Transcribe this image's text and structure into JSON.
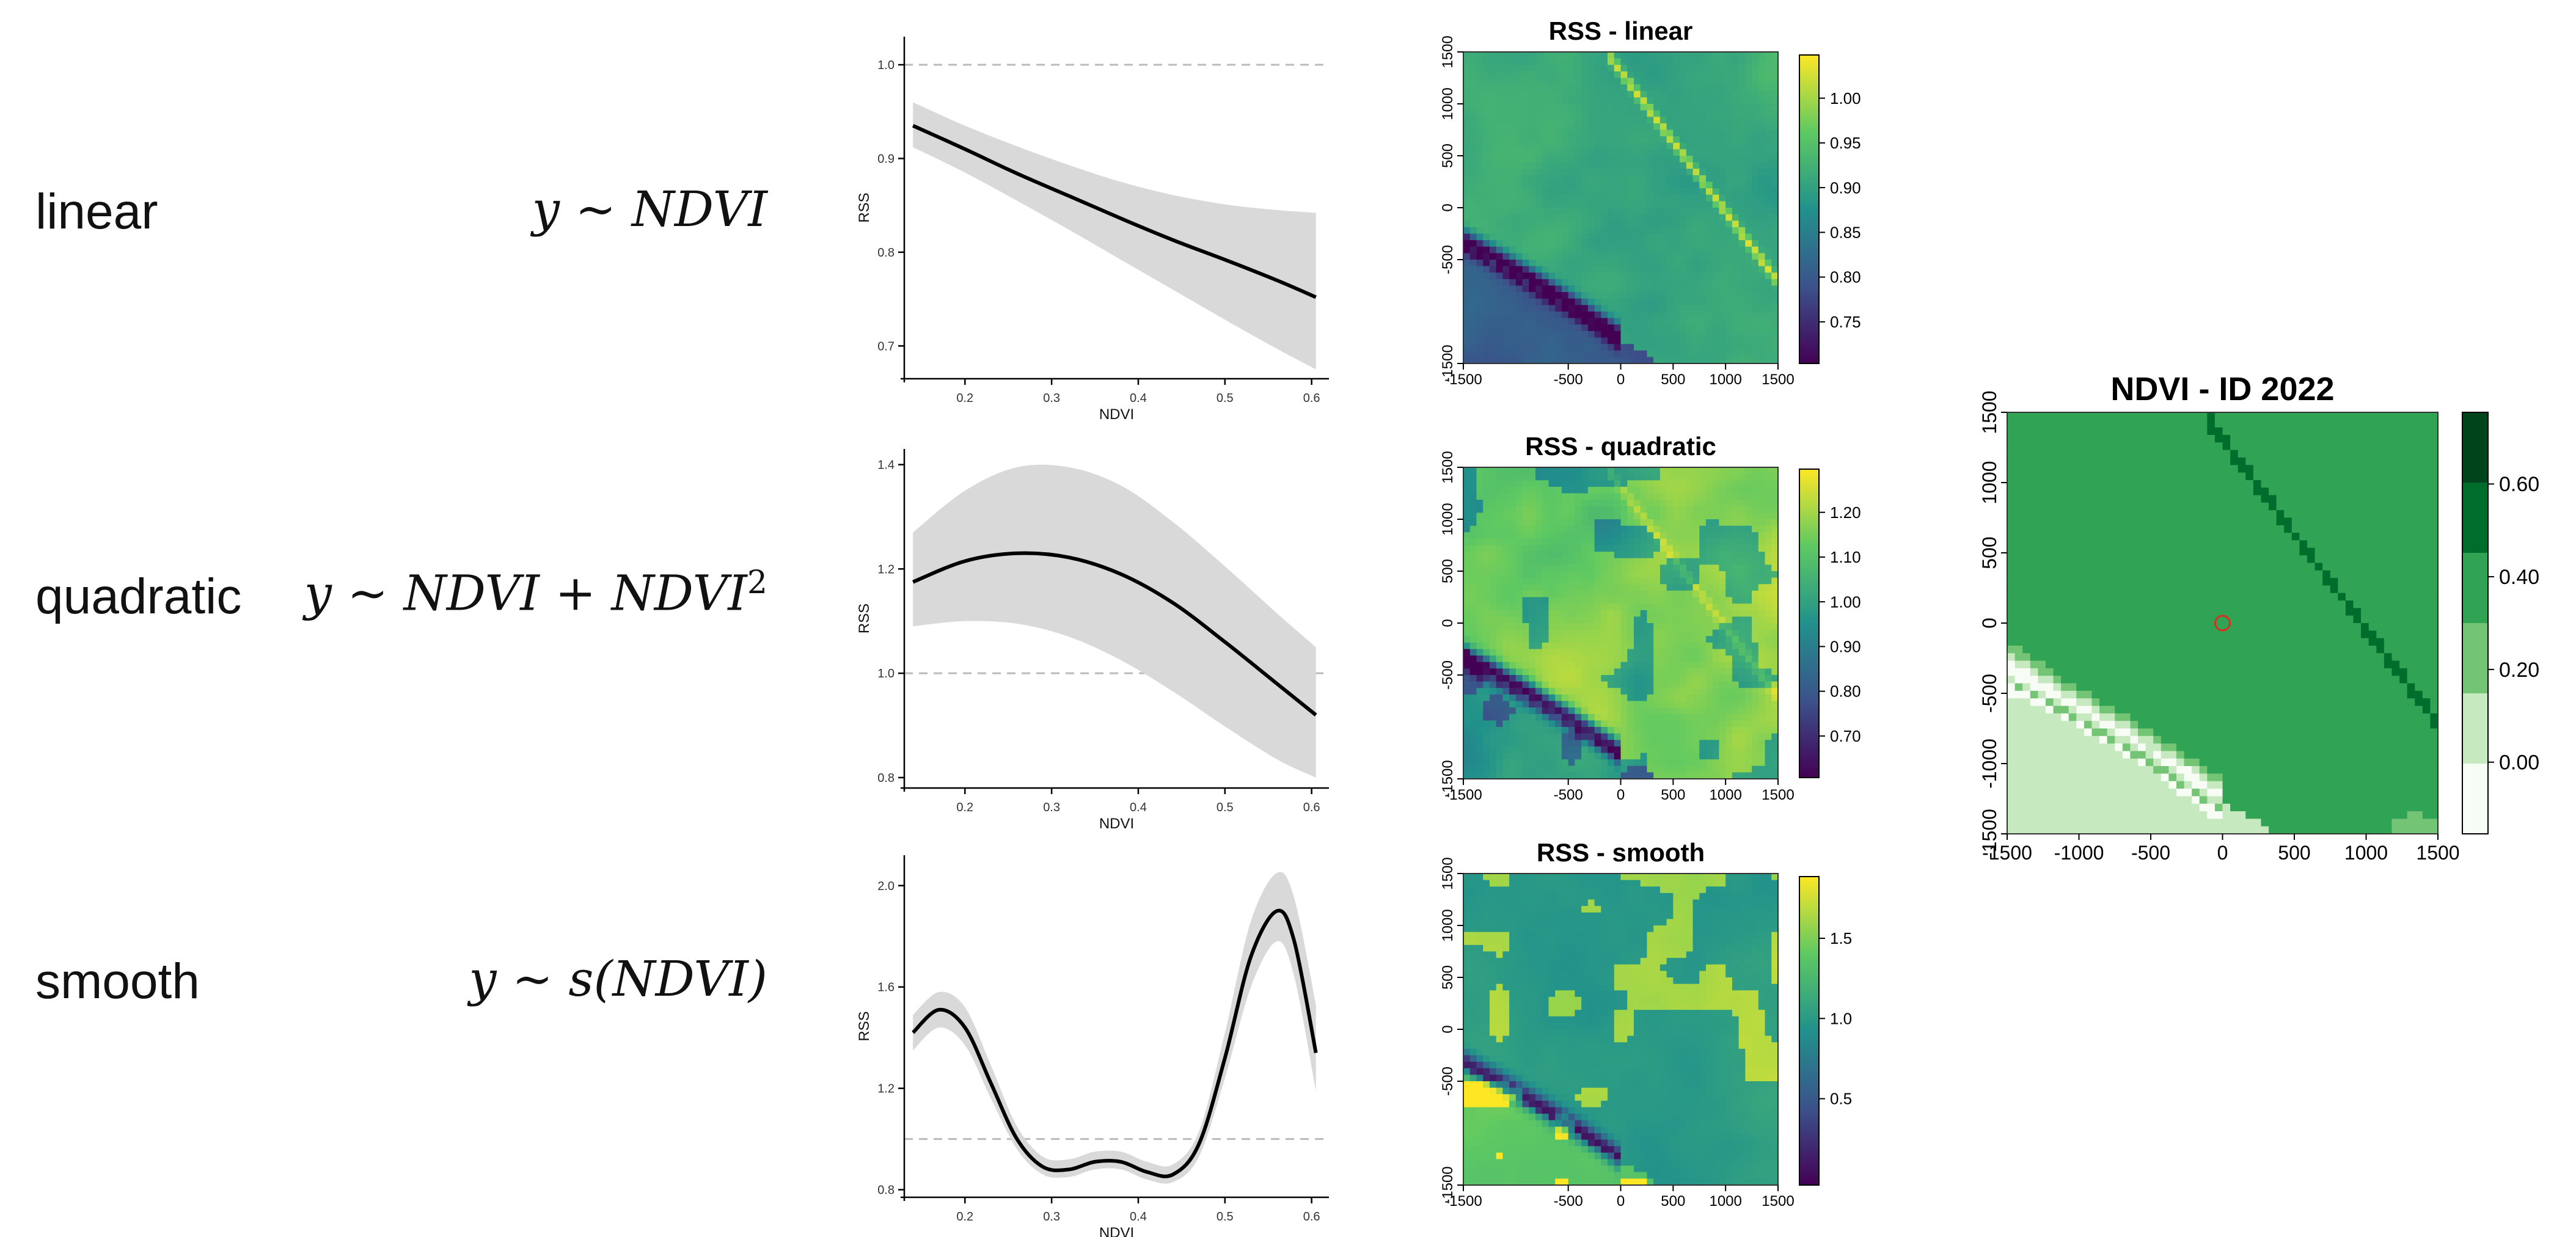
{
  "rows": [
    {
      "name": "linear",
      "formula_text": "y ~ NDVI"
    },
    {
      "name": "quadratic",
      "formula_text": "y ~ NDVI + NDVI",
      "formula_sup": "2"
    },
    {
      "name": "smooth",
      "formula_text": "y ~ s(NDVI)"
    }
  ],
  "chart_data": [
    {
      "type": "line",
      "xlabel": "NDVI",
      "ylabel": "RSS",
      "xlim": [
        0.13,
        0.62
      ],
      "ylim": [
        0.665,
        1.03
      ],
      "x_ticks": [
        0.2,
        0.3,
        0.4,
        0.5,
        0.6
      ],
      "y_ticks": [
        0.7,
        0.8,
        0.9,
        1.0
      ],
      "reference_line": 1.0,
      "series": [
        {
          "x": [
            0.14,
            0.2,
            0.26,
            0.32,
            0.38,
            0.44,
            0.5,
            0.56,
            0.605
          ],
          "y": [
            0.935,
            0.91,
            0.884,
            0.86,
            0.836,
            0.813,
            0.792,
            0.77,
            0.752
          ],
          "lower": [
            0.912,
            0.885,
            0.855,
            0.824,
            0.792,
            0.76,
            0.728,
            0.697,
            0.675
          ],
          "upper": [
            0.96,
            0.935,
            0.913,
            0.893,
            0.875,
            0.861,
            0.851,
            0.845,
            0.842
          ]
        }
      ]
    },
    {
      "type": "line",
      "xlabel": "NDVI",
      "ylabel": "RSS",
      "xlim": [
        0.13,
        0.62
      ],
      "ylim": [
        0.78,
        1.43
      ],
      "x_ticks": [
        0.2,
        0.3,
        0.4,
        0.5,
        0.6
      ],
      "y_ticks": [
        0.8,
        1.0,
        1.2,
        1.4
      ],
      "reference_line": 1.0,
      "series": [
        {
          "x": [
            0.14,
            0.2,
            0.26,
            0.32,
            0.38,
            0.44,
            0.5,
            0.56,
            0.605
          ],
          "y": [
            1.175,
            1.215,
            1.23,
            1.222,
            1.19,
            1.135,
            1.06,
            0.98,
            0.92
          ],
          "lower": [
            1.09,
            1.1,
            1.095,
            1.07,
            1.025,
            0.965,
            0.898,
            0.835,
            0.8
          ],
          "upper": [
            1.27,
            1.35,
            1.395,
            1.395,
            1.36,
            1.29,
            1.205,
            1.115,
            1.05
          ]
        }
      ]
    },
    {
      "type": "line",
      "xlabel": "NDVI",
      "ylabel": "RSS",
      "xlim": [
        0.13,
        0.62
      ],
      "ylim": [
        0.77,
        2.12
      ],
      "x_ticks": [
        0.2,
        0.3,
        0.4,
        0.5,
        0.6
      ],
      "y_ticks": [
        0.8,
        1.2,
        1.6,
        2.0
      ],
      "reference_line": 1.0,
      "series": [
        {
          "x": [
            0.14,
            0.17,
            0.2,
            0.23,
            0.26,
            0.29,
            0.32,
            0.35,
            0.38,
            0.41,
            0.44,
            0.47,
            0.5,
            0.53,
            0.56,
            0.58,
            0.605
          ],
          "y": [
            1.42,
            1.51,
            1.44,
            1.22,
            1.0,
            0.89,
            0.88,
            0.91,
            0.91,
            0.87,
            0.86,
            0.98,
            1.32,
            1.72,
            1.9,
            1.78,
            1.34
          ],
          "lower": [
            1.35,
            1.44,
            1.37,
            1.16,
            0.96,
            0.86,
            0.85,
            0.88,
            0.88,
            0.84,
            0.83,
            0.93,
            1.24,
            1.6,
            1.78,
            1.64,
            1.19
          ],
          "upper": [
            1.49,
            1.58,
            1.52,
            1.29,
            1.05,
            0.93,
            0.92,
            0.95,
            0.95,
            0.91,
            0.9,
            1.03,
            1.42,
            1.86,
            2.05,
            1.95,
            1.53
          ]
        }
      ]
    }
  ],
  "maps": [
    {
      "title": "RSS - linear",
      "axis_ticks": [
        "-1500",
        "-500",
        "0",
        "500",
        "1000",
        "1500"
      ],
      "colorbar_ticks": [
        "1.00",
        "0.95",
        "0.90",
        "0.85",
        "0.80",
        "0.75"
      ],
      "palette": "viridis"
    },
    {
      "title": "RSS - quadratic",
      "axis_ticks": [
        "-1500",
        "-500",
        "0",
        "500",
        "1000",
        "1500"
      ],
      "colorbar_ticks": [
        "1.20",
        "1.10",
        "1.00",
        "0.90",
        "0.80",
        "0.70"
      ],
      "palette": "viridis"
    },
    {
      "title": "RSS - smooth",
      "axis_ticks": [
        "-1500",
        "-500",
        "0",
        "500",
        "1000",
        "1500"
      ],
      "colorbar_ticks": [
        "1.5",
        "1.0",
        "0.5"
      ],
      "palette": "viridis"
    },
    {
      "title": "NDVI - ID 2022",
      "axis_ticks": [
        "-1500",
        "-1000",
        "-500",
        "0",
        "500",
        "1000",
        "1500"
      ],
      "colorbar_ticks": [
        "0.60",
        "0.40",
        "0.20",
        "0.00"
      ],
      "palette": "greens"
    }
  ],
  "colors": {
    "curve": "#000000",
    "ribbon": "#d9d9d9",
    "reference": "#bbbbbb",
    "viridis": [
      "#440154",
      "#3b528b",
      "#21918c",
      "#5ec962",
      "#fde725"
    ],
    "greens": [
      "#f7fcf5",
      "#c7e9c0",
      "#74c476",
      "#31a354",
      "#006d2c",
      "#00441b"
    ],
    "marker": "#d7301f"
  }
}
